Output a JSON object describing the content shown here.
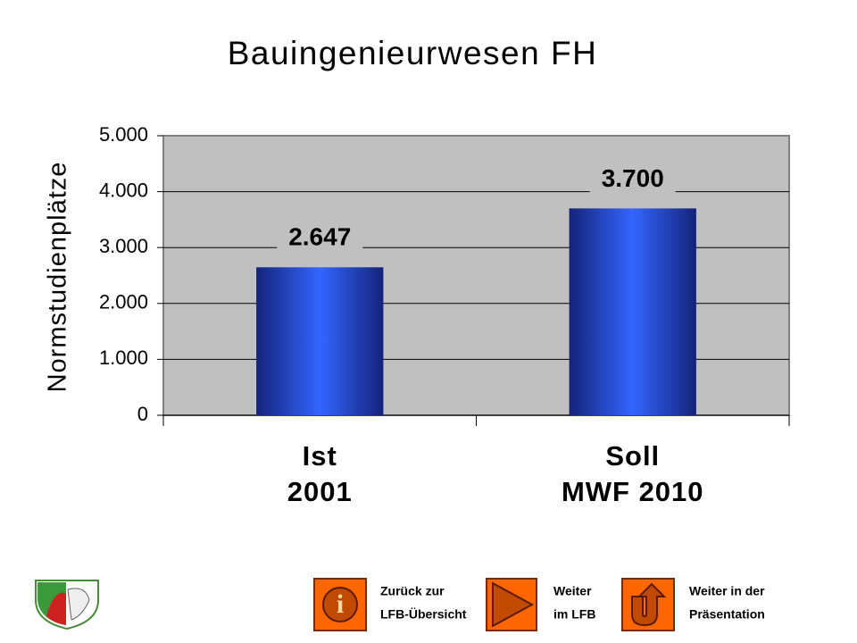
{
  "chart_data": {
    "type": "bar",
    "title": "Bauingenieurwesen FH",
    "y_label": "Normstudienplätze",
    "categories": [
      [
        "Ist",
        "2001"
      ],
      [
        "Soll",
        "MWF 2010"
      ]
    ],
    "values": [
      2647,
      3700
    ],
    "value_labels": [
      "2.647",
      "3.700"
    ],
    "color": "#3366ff",
    "ylim": [
      0,
      5000
    ],
    "yticks": [
      0,
      {
        "value": 1000,
        "label": "1.000"
      },
      {
        "value": 2000,
        "label": "2.000"
      },
      {
        "value": 3000,
        "label": "3.000"
      },
      {
        "value": 4000,
        "label": "4.000"
      },
      {
        "value": 5000,
        "label": "5.000"
      }
    ],
    "grid": true
  },
  "footer": {
    "buttons": [
      {
        "lines": [
          "Zurück zur",
          "LFB-Übersicht"
        ]
      },
      {
        "lines": [
          "Weiter",
          "im LFB"
        ]
      },
      {
        "lines": [
          "Weiter in der",
          "Präsentation"
        ]
      }
    ]
  }
}
